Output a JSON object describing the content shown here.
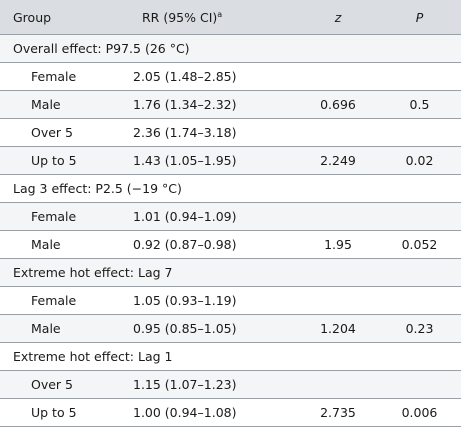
{
  "headers": {
    "group": "Group",
    "rr": "RR (95% CI)",
    "rr_sup": "a",
    "z": "z",
    "p": "P"
  },
  "rows": [
    {
      "type": "section",
      "label": "Overall effect: P97.5 (26 °C)"
    },
    {
      "type": "data",
      "group": "Female",
      "rr": "2.05 (1.48–2.85)",
      "z": "",
      "p": "",
      "p_bold": false
    },
    {
      "type": "data",
      "group": "Male",
      "rr": "1.76 (1.34–2.32)",
      "z": "0.696",
      "p": "0.5",
      "p_bold": false
    },
    {
      "type": "data",
      "group": "Over 5",
      "rr": "2.36 (1.74–3.18)",
      "z": "",
      "p": "",
      "p_bold": false
    },
    {
      "type": "data",
      "group": "Up to 5",
      "rr": "1.43 (1.05–1.95)",
      "z": "2.249",
      "p": "0.02",
      "p_bold": true
    },
    {
      "type": "section",
      "label": "Lag 3 effect: P2.5 (−19 °C)"
    },
    {
      "type": "data",
      "group": "Female",
      "rr": "1.01 (0.94–1.09)",
      "z": "",
      "p": "",
      "p_bold": false
    },
    {
      "type": "data",
      "group": "Male",
      "rr": "0.92 (0.87–0.98)",
      "z": "1.95",
      "p": "0.052",
      "p_bold": false
    },
    {
      "type": "section",
      "label": "Extreme hot effect: Lag 7"
    },
    {
      "type": "data",
      "group": "Female",
      "rr": "1.05 (0.93–1.19)",
      "z": "",
      "p": "",
      "p_bold": false
    },
    {
      "type": "data",
      "group": "Male",
      "rr": "0.95 (0.85–1.05)",
      "z": "1.204",
      "p": "0.23",
      "p_bold": false
    },
    {
      "type": "section",
      "label": "Extreme hot effect: Lag 1"
    },
    {
      "type": "data",
      "group": "Over 5",
      "rr": "1.15 (1.07–1.23)",
      "z": "",
      "p": "",
      "p_bold": false
    },
    {
      "type": "data",
      "group": "Up to 5",
      "rr": "1.00 (0.94–1.08)",
      "z": "2.735",
      "p": "0.006",
      "p_bold": true
    }
  ]
}
